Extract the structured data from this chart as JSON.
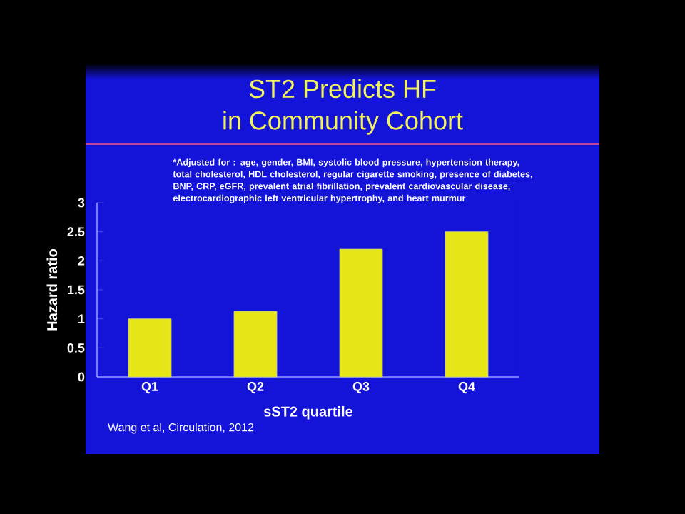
{
  "chart_data": {
    "type": "bar",
    "title": "ST2 Predicts HF",
    "subtitle": "in Community Cohort",
    "xlabel": "sST2 quartile",
    "ylabel": "Hazard ratio",
    "categories": [
      "Q1",
      "Q2",
      "Q3",
      "Q4"
    ],
    "values": [
      1.0,
      1.13,
      2.2,
      2.5
    ],
    "color": "#e6e619",
    "ylim": [
      0,
      3
    ],
    "yticks": [
      0,
      0.5,
      1,
      1.5,
      2,
      2.5,
      3
    ],
    "grid": false,
    "annotations": [
      "*Adjusted for : age, gender, BMI, systolic blood pressure, hypertension therapy, total cholesterol, HDL cholesterol, regular cigarette smoking, presence of diabetes, BNP, CRP, eGFR, prevalent atrial fibrillation, prevalent cardiovascular disease, electrocardiographic left ventricular hypertrophy, and heart murmur",
      "Wang et al, Circulation, 2012"
    ]
  }
}
